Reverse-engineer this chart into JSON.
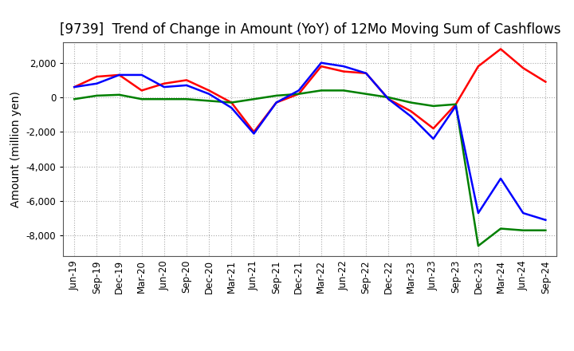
{
  "title": "[9739]  Trend of Change in Amount (YoY) of 12Mo Moving Sum of Cashflows",
  "ylabel": "Amount (million yen)",
  "title_fontsize": 12,
  "label_fontsize": 10,
  "tick_fontsize": 8.5,
  "background_color": "#ffffff",
  "grid_color": "#aaaaaa",
  "xlabels": [
    "Jun-19",
    "Sep-19",
    "Dec-19",
    "Mar-20",
    "Jun-20",
    "Sep-20",
    "Dec-20",
    "Mar-21",
    "Jun-21",
    "Sep-21",
    "Dec-21",
    "Mar-22",
    "Jun-22",
    "Sep-22",
    "Dec-22",
    "Mar-23",
    "Jun-23",
    "Sep-23",
    "Dec-23",
    "Mar-24",
    "Jun-24",
    "Sep-24"
  ],
  "operating": [
    600,
    1200,
    1300,
    400,
    800,
    1000,
    400,
    -300,
    -2000,
    -300,
    200,
    1800,
    1500,
    1400,
    -100,
    -800,
    -1800,
    -400,
    1800,
    2800,
    1700,
    900
  ],
  "investing": [
    -100,
    100,
    150,
    -100,
    -100,
    -100,
    -200,
    -300,
    -100,
    100,
    200,
    400,
    400,
    200,
    0,
    -300,
    -500,
    -400,
    -8600,
    -7600,
    -7700,
    -7700
  ],
  "free": [
    600,
    800,
    1300,
    1300,
    600,
    700,
    200,
    -600,
    -2100,
    -300,
    400,
    2000,
    1800,
    1400,
    -100,
    -1100,
    -2400,
    -500,
    -6700,
    -4700,
    -6700,
    -7100
  ],
  "ylim": [
    -9200,
    3200
  ],
  "yticks": [
    2000,
    0,
    -2000,
    -4000,
    -6000,
    -8000
  ],
  "line_colors": {
    "operating": "#ff0000",
    "investing": "#008000",
    "free": "#0000ff"
  },
  "line_width": 1.8
}
